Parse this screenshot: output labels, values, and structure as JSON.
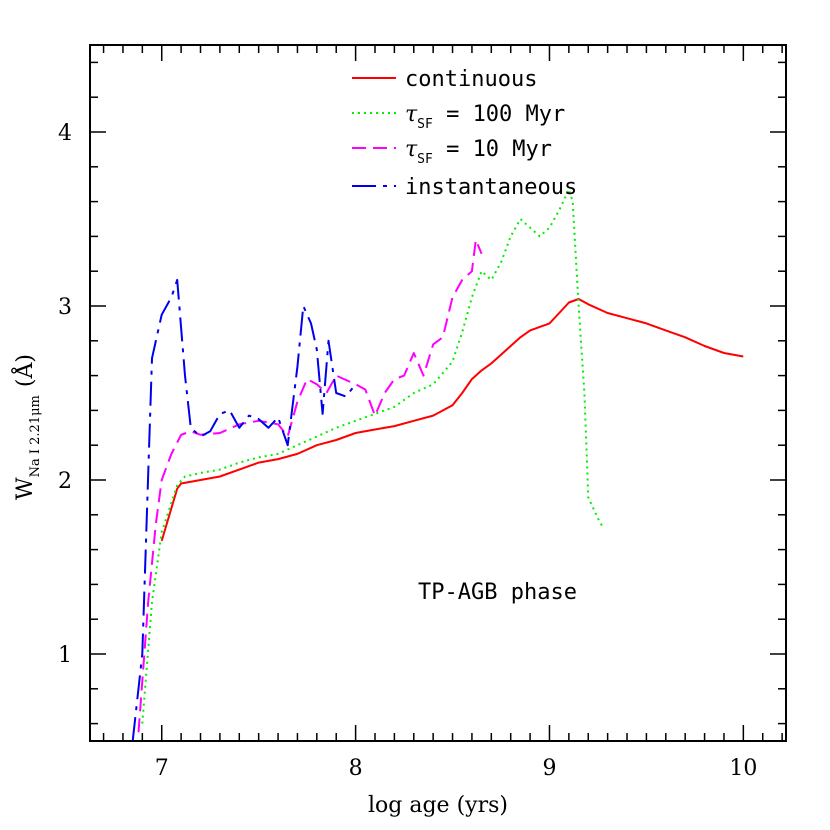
{
  "chart_data": {
    "type": "line",
    "xlabel": "log age (yrs)",
    "ylabel_main": "W",
    "ylabel_sub": "Na I  2.21μm",
    "ylabel_unit": "(Å)",
    "xlim": [
      6.63,
      10.22
    ],
    "ylim": [
      0.5,
      4.5
    ],
    "x_ticks": [
      7,
      8,
      9,
      10
    ],
    "y_ticks": [
      1,
      2,
      3,
      4
    ],
    "grid": false,
    "legend_placement": "top-center",
    "annotation": "TP-AGB phase",
    "series": [
      {
        "name": "continuous",
        "legend_prefix": "",
        "legend_sub": "",
        "legend_suffix": "continuous",
        "color": "#ff0000",
        "dash": "",
        "points": [
          [
            7.0,
            1.65
          ],
          [
            7.08,
            1.95
          ],
          [
            7.1,
            1.98
          ],
          [
            7.2,
            2.0
          ],
          [
            7.3,
            2.02
          ],
          [
            7.4,
            2.06
          ],
          [
            7.5,
            2.1
          ],
          [
            7.6,
            2.12
          ],
          [
            7.7,
            2.15
          ],
          [
            7.8,
            2.2
          ],
          [
            7.9,
            2.23
          ],
          [
            8.0,
            2.27
          ],
          [
            8.1,
            2.29
          ],
          [
            8.2,
            2.31
          ],
          [
            8.3,
            2.34
          ],
          [
            8.4,
            2.37
          ],
          [
            8.5,
            2.43
          ],
          [
            8.55,
            2.5
          ],
          [
            8.6,
            2.58
          ],
          [
            8.65,
            2.63
          ],
          [
            8.7,
            2.67
          ],
          [
            8.75,
            2.72
          ],
          [
            8.8,
            2.77
          ],
          [
            8.85,
            2.82
          ],
          [
            8.9,
            2.86
          ],
          [
            9.0,
            2.9
          ],
          [
            9.05,
            2.96
          ],
          [
            9.1,
            3.02
          ],
          [
            9.15,
            3.04
          ],
          [
            9.2,
            3.01
          ],
          [
            9.3,
            2.96
          ],
          [
            9.4,
            2.93
          ],
          [
            9.5,
            2.9
          ],
          [
            9.6,
            2.86
          ],
          [
            9.7,
            2.82
          ],
          [
            9.8,
            2.77
          ],
          [
            9.9,
            2.73
          ],
          [
            10.0,
            2.71
          ]
        ]
      },
      {
        "name": "τSF = 100 Myr",
        "legend_prefix": "τ",
        "legend_sub": "SF",
        "legend_suffix": " = 100 Myr",
        "color": "#00ee00",
        "dash": "2,4",
        "points": [
          [
            6.9,
            0.6
          ],
          [
            6.95,
            1.3
          ],
          [
            7.0,
            1.7
          ],
          [
            7.08,
            1.97
          ],
          [
            7.12,
            2.02
          ],
          [
            7.2,
            2.04
          ],
          [
            7.3,
            2.06
          ],
          [
            7.4,
            2.1
          ],
          [
            7.5,
            2.13
          ],
          [
            7.6,
            2.15
          ],
          [
            7.7,
            2.2
          ],
          [
            7.8,
            2.25
          ],
          [
            7.9,
            2.3
          ],
          [
            8.0,
            2.34
          ],
          [
            8.1,
            2.38
          ],
          [
            8.2,
            2.42
          ],
          [
            8.3,
            2.5
          ],
          [
            8.4,
            2.55
          ],
          [
            8.5,
            2.68
          ],
          [
            8.55,
            2.85
          ],
          [
            8.6,
            3.05
          ],
          [
            8.65,
            3.2
          ],
          [
            8.7,
            3.15
          ],
          [
            8.75,
            3.25
          ],
          [
            8.8,
            3.4
          ],
          [
            8.85,
            3.5
          ],
          [
            8.9,
            3.45
          ],
          [
            8.95,
            3.4
          ],
          [
            9.0,
            3.45
          ],
          [
            9.05,
            3.55
          ],
          [
            9.1,
            3.67
          ],
          [
            9.12,
            3.6
          ],
          [
            9.15,
            3.0
          ],
          [
            9.18,
            2.5
          ],
          [
            9.2,
            1.9
          ],
          [
            9.25,
            1.78
          ],
          [
            9.28,
            1.72
          ]
        ]
      },
      {
        "name": "τSF = 10 Myr",
        "legend_prefix": "τ",
        "legend_sub": "SF",
        "legend_suffix": " = 10 Myr",
        "color": "#ff00ff",
        "dash": "14,7",
        "points": [
          [
            6.88,
            0.55
          ],
          [
            6.93,
            1.3
          ],
          [
            6.97,
            1.75
          ],
          [
            7.0,
            2.0
          ],
          [
            7.05,
            2.15
          ],
          [
            7.1,
            2.26
          ],
          [
            7.15,
            2.28
          ],
          [
            7.2,
            2.26
          ],
          [
            7.3,
            2.27
          ],
          [
            7.4,
            2.32
          ],
          [
            7.5,
            2.34
          ],
          [
            7.6,
            2.32
          ],
          [
            7.65,
            2.25
          ],
          [
            7.7,
            2.45
          ],
          [
            7.75,
            2.58
          ],
          [
            7.8,
            2.55
          ],
          [
            7.85,
            2.5
          ],
          [
            7.9,
            2.6
          ],
          [
            8.0,
            2.55
          ],
          [
            8.05,
            2.52
          ],
          [
            8.1,
            2.37
          ],
          [
            8.15,
            2.5
          ],
          [
            8.2,
            2.58
          ],
          [
            8.25,
            2.6
          ],
          [
            8.3,
            2.73
          ],
          [
            8.35,
            2.6
          ],
          [
            8.4,
            2.78
          ],
          [
            8.45,
            2.82
          ],
          [
            8.5,
            3.05
          ],
          [
            8.55,
            3.15
          ],
          [
            8.6,
            3.2
          ],
          [
            8.62,
            3.38
          ],
          [
            8.65,
            3.3
          ]
        ]
      },
      {
        "name": "instantaneous",
        "legend_prefix": "",
        "legend_sub": "",
        "legend_suffix": "instantaneous",
        "color": "#0000ee",
        "dash": "24,7,4,7",
        "points": [
          [
            6.85,
            0.5
          ],
          [
            6.9,
            1.0
          ],
          [
            6.95,
            2.7
          ],
          [
            7.0,
            2.95
          ],
          [
            7.05,
            3.05
          ],
          [
            7.08,
            3.15
          ],
          [
            7.12,
            2.6
          ],
          [
            7.15,
            2.3
          ],
          [
            7.2,
            2.25
          ],
          [
            7.25,
            2.28
          ],
          [
            7.3,
            2.38
          ],
          [
            7.35,
            2.4
          ],
          [
            7.4,
            2.3
          ],
          [
            7.45,
            2.37
          ],
          [
            7.5,
            2.35
          ],
          [
            7.55,
            2.3
          ],
          [
            7.6,
            2.36
          ],
          [
            7.65,
            2.2
          ],
          [
            7.7,
            2.65
          ],
          [
            7.73,
            3.0
          ],
          [
            7.77,
            2.9
          ],
          [
            7.8,
            2.75
          ],
          [
            7.83,
            2.38
          ],
          [
            7.86,
            2.8
          ],
          [
            7.9,
            2.5
          ],
          [
            7.95,
            2.48
          ],
          [
            8.0,
            2.55
          ]
        ]
      }
    ]
  }
}
